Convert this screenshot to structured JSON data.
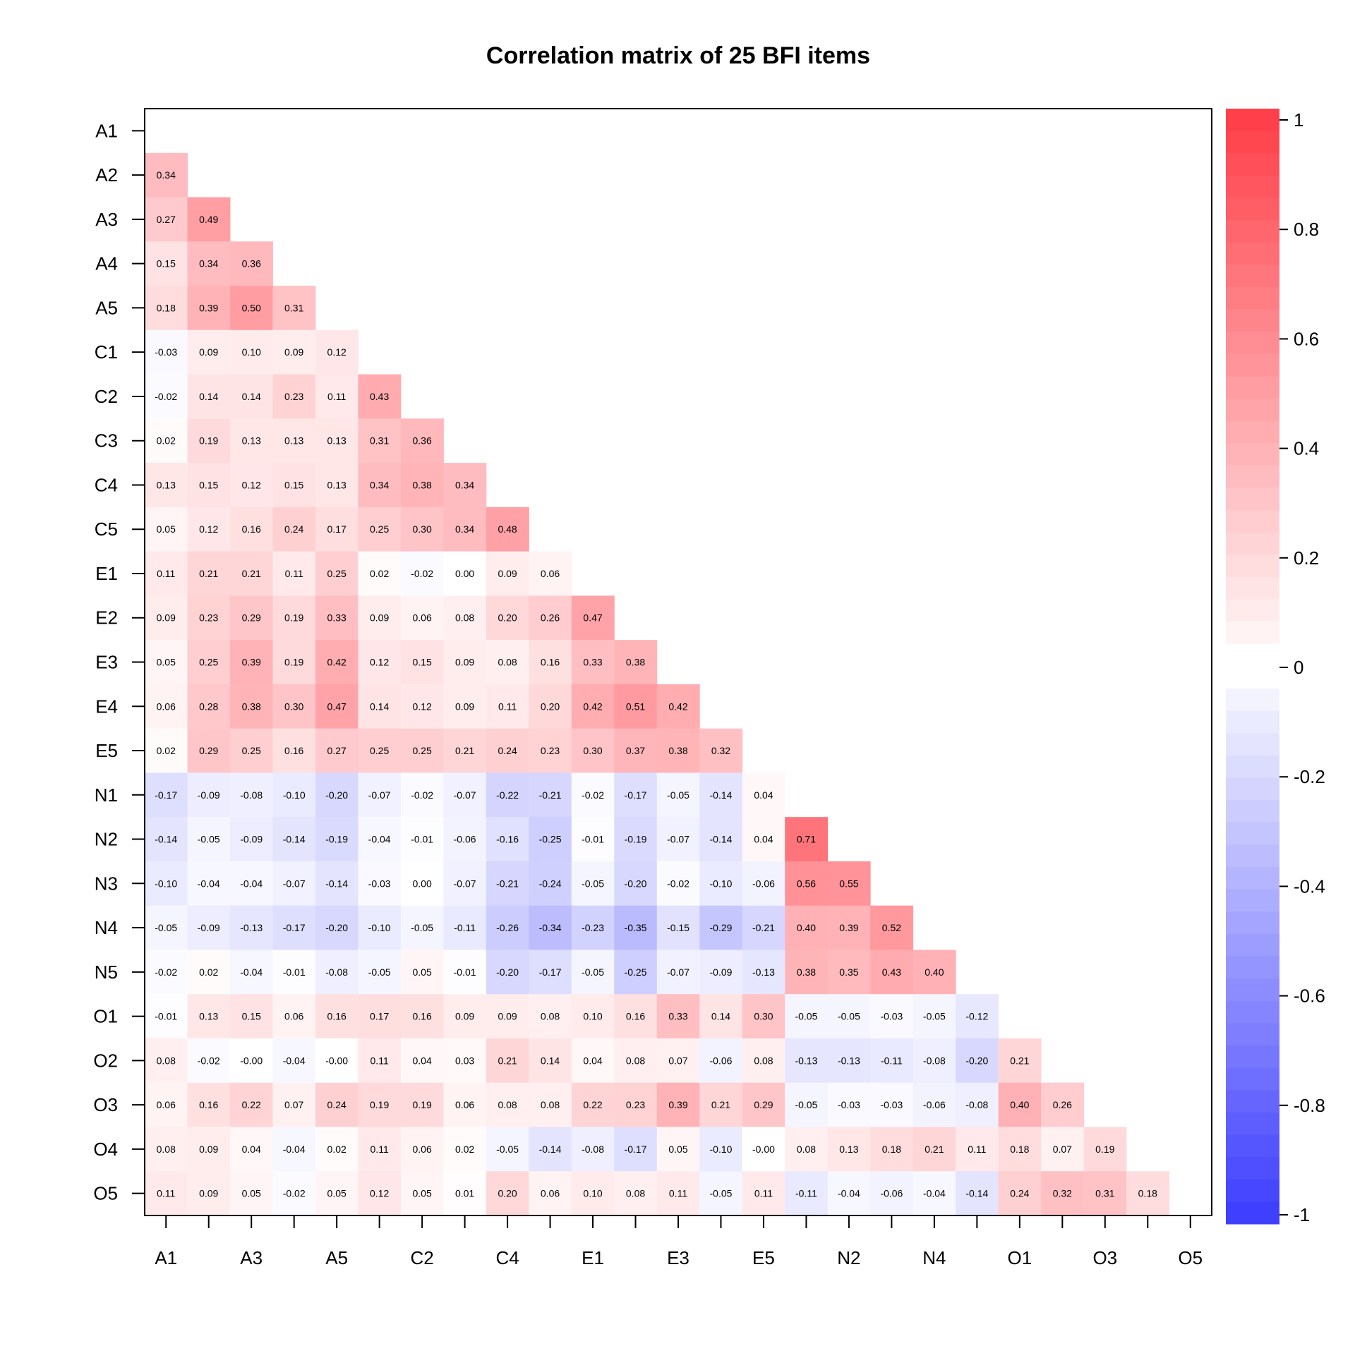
{
  "chart_data": {
    "type": "heatmap",
    "title": "Correlation matrix of 25 BFI items",
    "row_labels": [
      "A1",
      "A2",
      "A3",
      "A4",
      "A5",
      "C1",
      "C2",
      "C3",
      "C4",
      "C5",
      "E1",
      "E2",
      "E3",
      "E4",
      "E5",
      "N1",
      "N2",
      "N3",
      "N4",
      "N5",
      "O1",
      "O2",
      "O3",
      "O4",
      "O5"
    ],
    "x_tick_labels": [
      "A1",
      "A3",
      "A5",
      "C2",
      "C4",
      "E1",
      "E3",
      "E5",
      "N2",
      "N4",
      "O1",
      "O3",
      "O5"
    ],
    "colorbar_ticks": [
      "1",
      "0.8",
      "0.6",
      "0.4",
      "0.2",
      "0",
      "-0.2",
      "-0.4",
      "-0.6",
      "-0.8",
      "-1"
    ],
    "range": [
      -1,
      1
    ],
    "lower_triangle": true,
    "colors": {
      "positive": "#ff3b4a",
      "negative": "#3b3bff",
      "zero": "#ffffff"
    },
    "values": [
      [],
      [
        "0.34"
      ],
      [
        "0.27",
        "0.49"
      ],
      [
        "0.15",
        "0.34",
        "0.36"
      ],
      [
        "0.18",
        "0.39",
        "0.50",
        "0.31"
      ],
      [
        "-0.03",
        "0.09",
        "0.10",
        "0.09",
        "0.12"
      ],
      [
        "-0.02",
        "0.14",
        "0.14",
        "0.23",
        "0.11",
        "0.43"
      ],
      [
        "0.02",
        "0.19",
        "0.13",
        "0.13",
        "0.13",
        "0.31",
        "0.36"
      ],
      [
        "0.13",
        "0.15",
        "0.12",
        "0.15",
        "0.13",
        "0.34",
        "0.38",
        "0.34"
      ],
      [
        "0.05",
        "0.12",
        "0.16",
        "0.24",
        "0.17",
        "0.25",
        "0.30",
        "0.34",
        "0.48"
      ],
      [
        "0.11",
        "0.21",
        "0.21",
        "0.11",
        "0.25",
        "0.02",
        "-0.02",
        "0.00",
        "0.09",
        "0.06"
      ],
      [
        "0.09",
        "0.23",
        "0.29",
        "0.19",
        "0.33",
        "0.09",
        "0.06",
        "0.08",
        "0.20",
        "0.26",
        "0.47"
      ],
      [
        "0.05",
        "0.25",
        "0.39",
        "0.19",
        "0.42",
        "0.12",
        "0.15",
        "0.09",
        "0.08",
        "0.16",
        "0.33",
        "0.38"
      ],
      [
        "0.06",
        "0.28",
        "0.38",
        "0.30",
        "0.47",
        "0.14",
        "0.12",
        "0.09",
        "0.11",
        "0.20",
        "0.42",
        "0.51",
        "0.42"
      ],
      [
        "0.02",
        "0.29",
        "0.25",
        "0.16",
        "0.27",
        "0.25",
        "0.25",
        "0.21",
        "0.24",
        "0.23",
        "0.30",
        "0.37",
        "0.38",
        "0.32"
      ],
      [
        "-0.17",
        "-0.09",
        "-0.08",
        "-0.10",
        "-0.20",
        "-0.07",
        "-0.02",
        "-0.07",
        "-0.22",
        "-0.21",
        "-0.02",
        "-0.17",
        "-0.05",
        "-0.14",
        "0.04"
      ],
      [
        "-0.14",
        "-0.05",
        "-0.09",
        "-0.14",
        "-0.19",
        "-0.04",
        "-0.01",
        "-0.06",
        "-0.16",
        "-0.25",
        "-0.01",
        "-0.19",
        "-0.07",
        "-0.14",
        "0.04",
        "0.71"
      ],
      [
        "-0.10",
        "-0.04",
        "-0.04",
        "-0.07",
        "-0.14",
        "-0.03",
        "0.00",
        "-0.07",
        "-0.21",
        "-0.24",
        "-0.05",
        "-0.20",
        "-0.02",
        "-0.10",
        "-0.06",
        "0.56",
        "0.55"
      ],
      [
        "-0.05",
        "-0.09",
        "-0.13",
        "-0.17",
        "-0.20",
        "-0.10",
        "-0.05",
        "-0.11",
        "-0.26",
        "-0.34",
        "-0.23",
        "-0.35",
        "-0.15",
        "-0.29",
        "-0.21",
        "0.40",
        "0.39",
        "0.52"
      ],
      [
        "-0.02",
        "0.02",
        "-0.04",
        "-0.01",
        "-0.08",
        "-0.05",
        "0.05",
        "-0.01",
        "-0.20",
        "-0.17",
        "-0.05",
        "-0.25",
        "-0.07",
        "-0.09",
        "-0.13",
        "0.38",
        "0.35",
        "0.43",
        "0.40"
      ],
      [
        "-0.01",
        "0.13",
        "0.15",
        "0.06",
        "0.16",
        "0.17",
        "0.16",
        "0.09",
        "0.09",
        "0.08",
        "0.10",
        "0.16",
        "0.33",
        "0.14",
        "0.30",
        "-0.05",
        "-0.05",
        "-0.03",
        "-0.05",
        "-0.12"
      ],
      [
        "0.08",
        "-0.02",
        "-0.00",
        "-0.04",
        "-0.00",
        "0.11",
        "0.04",
        "0.03",
        "0.21",
        "0.14",
        "0.04",
        "0.08",
        "0.07",
        "-0.06",
        "0.08",
        "-0.13",
        "-0.13",
        "-0.11",
        "-0.08",
        "-0.20",
        "0.21"
      ],
      [
        "0.06",
        "0.16",
        "0.22",
        "0.07",
        "0.24",
        "0.19",
        "0.19",
        "0.06",
        "0.08",
        "0.08",
        "0.22",
        "0.23",
        "0.39",
        "0.21",
        "0.29",
        "-0.05",
        "-0.03",
        "-0.03",
        "-0.06",
        "-0.08",
        "0.40",
        "0.26"
      ],
      [
        "0.08",
        "0.09",
        "0.04",
        "-0.04",
        "0.02",
        "0.11",
        "0.06",
        "0.02",
        "-0.05",
        "-0.14",
        "-0.08",
        "-0.17",
        "0.05",
        "-0.10",
        "-0.00",
        "0.08",
        "0.13",
        "0.18",
        "0.21",
        "0.11",
        "0.18",
        "0.07",
        "0.19"
      ],
      [
        "0.11",
        "0.09",
        "0.05",
        "-0.02",
        "0.05",
        "0.12",
        "0.05",
        "0.01",
        "0.20",
        "0.06",
        "0.10",
        "0.08",
        "0.11",
        "-0.05",
        "0.11",
        "-0.11",
        "-0.04",
        "-0.06",
        "-0.04",
        "-0.14",
        "0.24",
        "0.32",
        "0.31",
        "0.18"
      ]
    ]
  }
}
